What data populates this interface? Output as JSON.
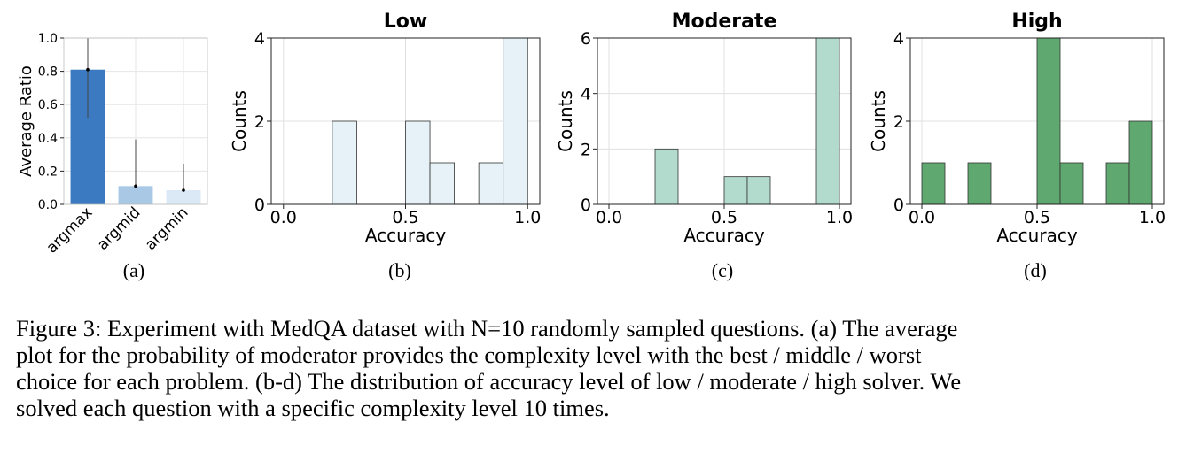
{
  "chart_data": [
    {
      "id": "a",
      "type": "bar",
      "categories": [
        "argmax",
        "argmid",
        "argmin"
      ],
      "values": [
        0.81,
        0.11,
        0.085
      ],
      "error_low": [
        0.52,
        0.11,
        0.085
      ],
      "error_high": [
        1.0,
        0.39,
        0.245
      ],
      "colors": [
        "#3b7ac0",
        "#a9c8e6",
        "#dbe8f6"
      ],
      "title": "",
      "xlabel": "",
      "ylabel": "Average Ratio",
      "ylim": [
        0,
        1.0
      ],
      "yticks": [
        "0.0",
        "0.2",
        "0.4",
        "0.6",
        "0.8",
        "1.0"
      ],
      "grid": true,
      "label": "(a)"
    },
    {
      "id": "b",
      "type": "bar",
      "histogram": true,
      "title": "Low",
      "xlabel": "Accuracy",
      "ylabel": "Counts",
      "bins": [
        [
          0.2,
          0.3,
          2
        ],
        [
          0.5,
          0.6,
          2
        ],
        [
          0.6,
          0.7,
          1
        ],
        [
          0.8,
          0.9,
          1
        ],
        [
          0.9,
          1.0,
          4
        ]
      ],
      "xlim": [
        0.0,
        1.0
      ],
      "ylim": [
        0,
        4
      ],
      "xticks": [
        "0.0",
        "0.5",
        "1.0"
      ],
      "yticks": [
        "0",
        "2",
        "4"
      ],
      "color": "#e6f2f7",
      "grid": true,
      "label": "(b)"
    },
    {
      "id": "c",
      "type": "bar",
      "histogram": true,
      "title": "Moderate",
      "xlabel": "Accuracy",
      "ylabel": "Counts",
      "bins": [
        [
          0.2,
          0.3,
          2
        ],
        [
          0.5,
          0.6,
          1
        ],
        [
          0.6,
          0.7,
          1
        ],
        [
          0.9,
          1.0,
          6
        ]
      ],
      "xlim": [
        0.0,
        1.0
      ],
      "ylim": [
        0,
        6
      ],
      "xticks": [
        "0.0",
        "0.5",
        "1.0"
      ],
      "yticks": [
        "0",
        "2",
        "4",
        "6"
      ],
      "color": "#b2dbce",
      "grid": true,
      "label": "(c)"
    },
    {
      "id": "d",
      "type": "bar",
      "histogram": true,
      "title": "High",
      "xlabel": "Accuracy",
      "ylabel": "Counts",
      "bins": [
        [
          0.0,
          0.1,
          1
        ],
        [
          0.2,
          0.3,
          1
        ],
        [
          0.5,
          0.6,
          4
        ],
        [
          0.6,
          0.7,
          1
        ],
        [
          0.8,
          0.9,
          1
        ],
        [
          0.9,
          1.0,
          2
        ]
      ],
      "xlim": [
        0.0,
        1.0
      ],
      "ylim": [
        0,
        4
      ],
      "xticks": [
        "0.0",
        "0.5",
        "1.0"
      ],
      "yticks": [
        "0",
        "2",
        "4"
      ],
      "color": "#5fa870",
      "grid": true,
      "label": "(d)"
    }
  ],
  "caption": {
    "lines": [
      "Figure 3: Experiment with MedQA dataset with N=10 randomly sampled questions. (a) The average",
      "plot for the probability of moderator provides the complexity level with the best / middle / worst",
      "choice for each problem. (b-d) The distribution of accuracy level of low / moderate / high solver. We",
      "solved each question with a specific complexity level 10 times."
    ]
  }
}
